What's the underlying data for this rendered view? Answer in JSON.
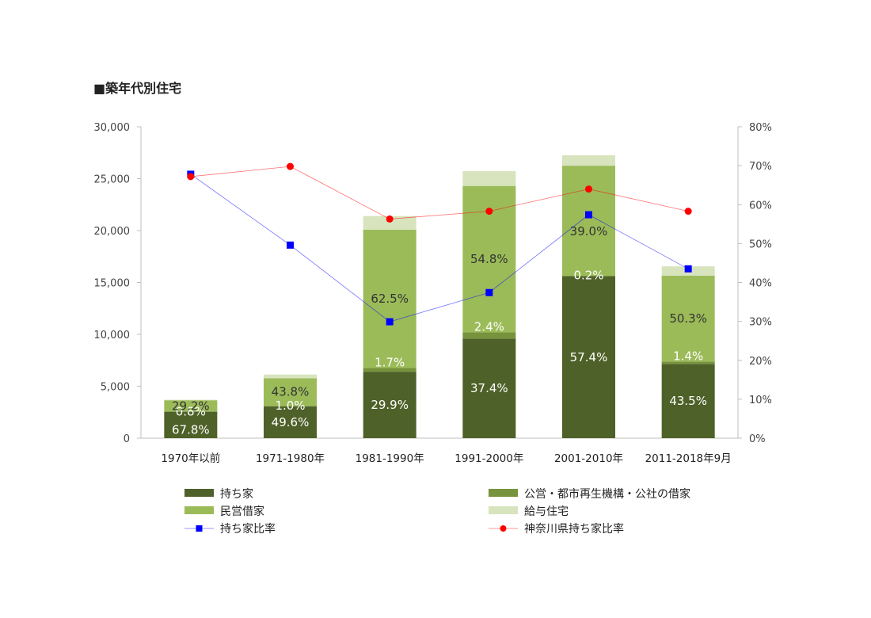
{
  "title": "■築年代別住宅",
  "chart_data": {
    "type": "bar",
    "stacked": true,
    "secondary_axis": true,
    "categories": [
      "1970年以前",
      "1971-1980年",
      "1981-1990年",
      "1991-2000年",
      "2001-2010年",
      "2011-2018年9月"
    ],
    "y_ticks": [
      "0",
      "5,000",
      "10,000",
      "15,000",
      "20,000",
      "25,000",
      "30,000"
    ],
    "y2_ticks": [
      "0%",
      "10%",
      "20%",
      "30%",
      "40%",
      "50%",
      "60%",
      "70%",
      "80%"
    ],
    "ylim": [
      0,
      30000
    ],
    "y2lim": [
      0,
      0.8
    ],
    "series": [
      {
        "name": "持ち家",
        "kind": "bar",
        "color": "#4e6128",
        "values": [
          2550,
          3050,
          6400,
          9600,
          15600,
          7150
        ],
        "labels": [
          "67.8%",
          "49.6%",
          "29.9%",
          "37.4%",
          "57.4%",
          "43.5%"
        ]
      },
      {
        "name": "公営・都市再生機構・公社の借家",
        "kind": "bar",
        "color": "#77933c",
        "values": [
          30,
          60,
          360,
          600,
          50,
          230
        ],
        "labels": [
          "0.8%",
          "1.0%",
          "1.7%",
          "2.4%",
          "0.2%",
          "1.4%"
        ]
      },
      {
        "name": "民営借家",
        "kind": "bar",
        "color": "#9bbb59",
        "values": [
          1070,
          2670,
          13320,
          14100,
          10600,
          8280
        ],
        "labels": [
          "29.2%",
          "43.8%",
          "62.5%",
          "54.8%",
          "39.0%",
          "50.3%"
        ]
      },
      {
        "name": "給与住宅",
        "kind": "bar",
        "color": "#d7e4bd",
        "values": [
          50,
          350,
          1320,
          1430,
          1000,
          890
        ],
        "labels": [
          "",
          "",
          "",
          "",
          "",
          ""
        ]
      },
      {
        "name": "持ち家比率",
        "kind": "line",
        "axis": "secondary",
        "color": "#0000ff",
        "marker": "square",
        "values": [
          0.678,
          0.496,
          0.299,
          0.374,
          0.574,
          0.435
        ]
      },
      {
        "name": "神奈川県持ち家比率",
        "kind": "line",
        "axis": "secondary",
        "color": "#ff0000",
        "marker": "circle",
        "values": [
          0.672,
          0.698,
          0.563,
          0.583,
          0.64,
          0.583
        ]
      }
    ],
    "grid": false,
    "legend_position": "bottom"
  }
}
